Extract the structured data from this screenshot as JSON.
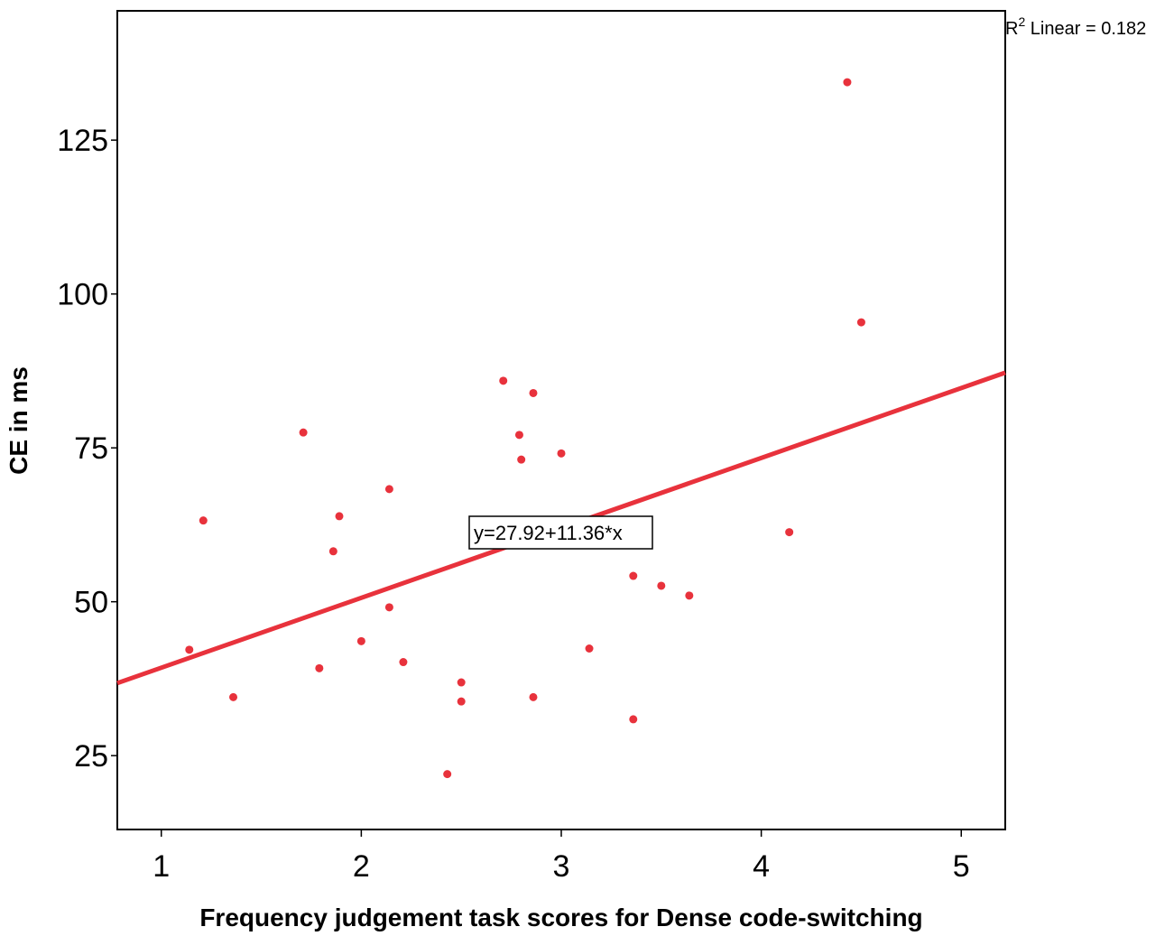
{
  "chart_data": {
    "type": "scatter",
    "xlabel": "Frequency judgement task scores for Dense code-switching",
    "ylabel": "CE in ms",
    "xlim": [
      0.78,
      5.22
    ],
    "ylim": [
      13,
      146
    ],
    "x_ticks": [
      1,
      2,
      3,
      4,
      5
    ],
    "y_ticks": [
      25,
      50,
      75,
      100,
      125
    ],
    "grid": false,
    "point_color": "#e8323c",
    "line_color": "#e8323c",
    "fit_line": {
      "intercept": 27.92,
      "slope": 11.36,
      "equation_label": "y=27.92+11.36*x",
      "r2_label_prefix": "R",
      "r2_label_sup": "2",
      "r2_label_suffix": " Linear = 0.182"
    },
    "points": [
      {
        "x": 1.14,
        "y": 42.2
      },
      {
        "x": 1.21,
        "y": 63.2
      },
      {
        "x": 1.36,
        "y": 34.5
      },
      {
        "x": 1.71,
        "y": 77.5
      },
      {
        "x": 1.79,
        "y": 39.2
      },
      {
        "x": 1.86,
        "y": 58.2
      },
      {
        "x": 1.89,
        "y": 63.9
      },
      {
        "x": 2.0,
        "y": 43.6
      },
      {
        "x": 2.14,
        "y": 68.3
      },
      {
        "x": 2.14,
        "y": 49.1
      },
      {
        "x": 2.21,
        "y": 40.2
      },
      {
        "x": 2.43,
        "y": 22.0
      },
      {
        "x": 2.5,
        "y": 36.9
      },
      {
        "x": 2.5,
        "y": 33.8
      },
      {
        "x": 2.71,
        "y": 85.9
      },
      {
        "x": 2.79,
        "y": 77.1
      },
      {
        "x": 2.8,
        "y": 73.1
      },
      {
        "x": 2.86,
        "y": 83.9
      },
      {
        "x": 2.86,
        "y": 34.5
      },
      {
        "x": 3.0,
        "y": 74.1
      },
      {
        "x": 3.14,
        "y": 42.4
      },
      {
        "x": 3.36,
        "y": 54.2
      },
      {
        "x": 3.36,
        "y": 30.9
      },
      {
        "x": 3.5,
        "y": 52.6
      },
      {
        "x": 3.64,
        "y": 51.0
      },
      {
        "x": 4.14,
        "y": 61.3
      },
      {
        "x": 4.43,
        "y": 134.4
      },
      {
        "x": 4.5,
        "y": 95.4
      }
    ]
  }
}
